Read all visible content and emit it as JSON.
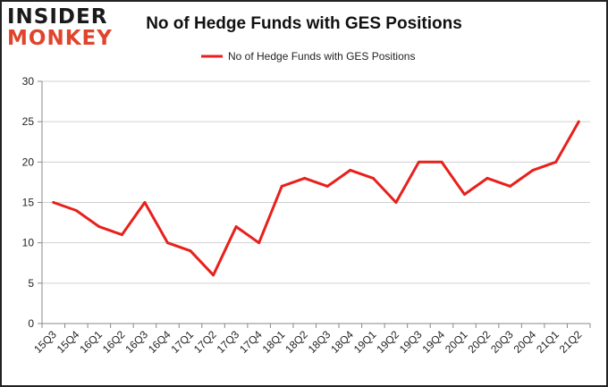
{
  "logo": {
    "line1": "INSIDER",
    "line2": "MONKEY"
  },
  "chart_data": {
    "type": "line",
    "title": "No of Hedge Funds with GES Positions",
    "xlabel": "",
    "ylabel": "",
    "categories": [
      "15Q3",
      "15Q4",
      "16Q1",
      "16Q2",
      "16Q3",
      "16Q4",
      "17Q1",
      "17Q2",
      "17Q3",
      "17Q4",
      "18Q1",
      "18Q2",
      "18Q3",
      "18Q4",
      "19Q1",
      "19Q2",
      "19Q3",
      "19Q4",
      "20Q1",
      "20Q2",
      "20Q3",
      "20Q4",
      "21Q1",
      "21Q2"
    ],
    "series": [
      {
        "name": "No of Hedge Funds with GES Positions",
        "values": [
          15,
          14,
          12,
          11,
          15,
          10,
          9,
          6,
          12,
          10,
          17,
          18,
          17,
          19,
          18,
          15,
          20,
          20,
          16,
          18,
          17,
          19,
          20,
          25
        ]
      }
    ],
    "ylim": [
      0,
      30
    ],
    "yticks": [
      0,
      5,
      10,
      15,
      20,
      25,
      30
    ],
    "grid": true,
    "legend": "top-center",
    "colors": {
      "line": "#e8201c",
      "grid": "#d0d0d0",
      "axis": "#888888"
    }
  }
}
